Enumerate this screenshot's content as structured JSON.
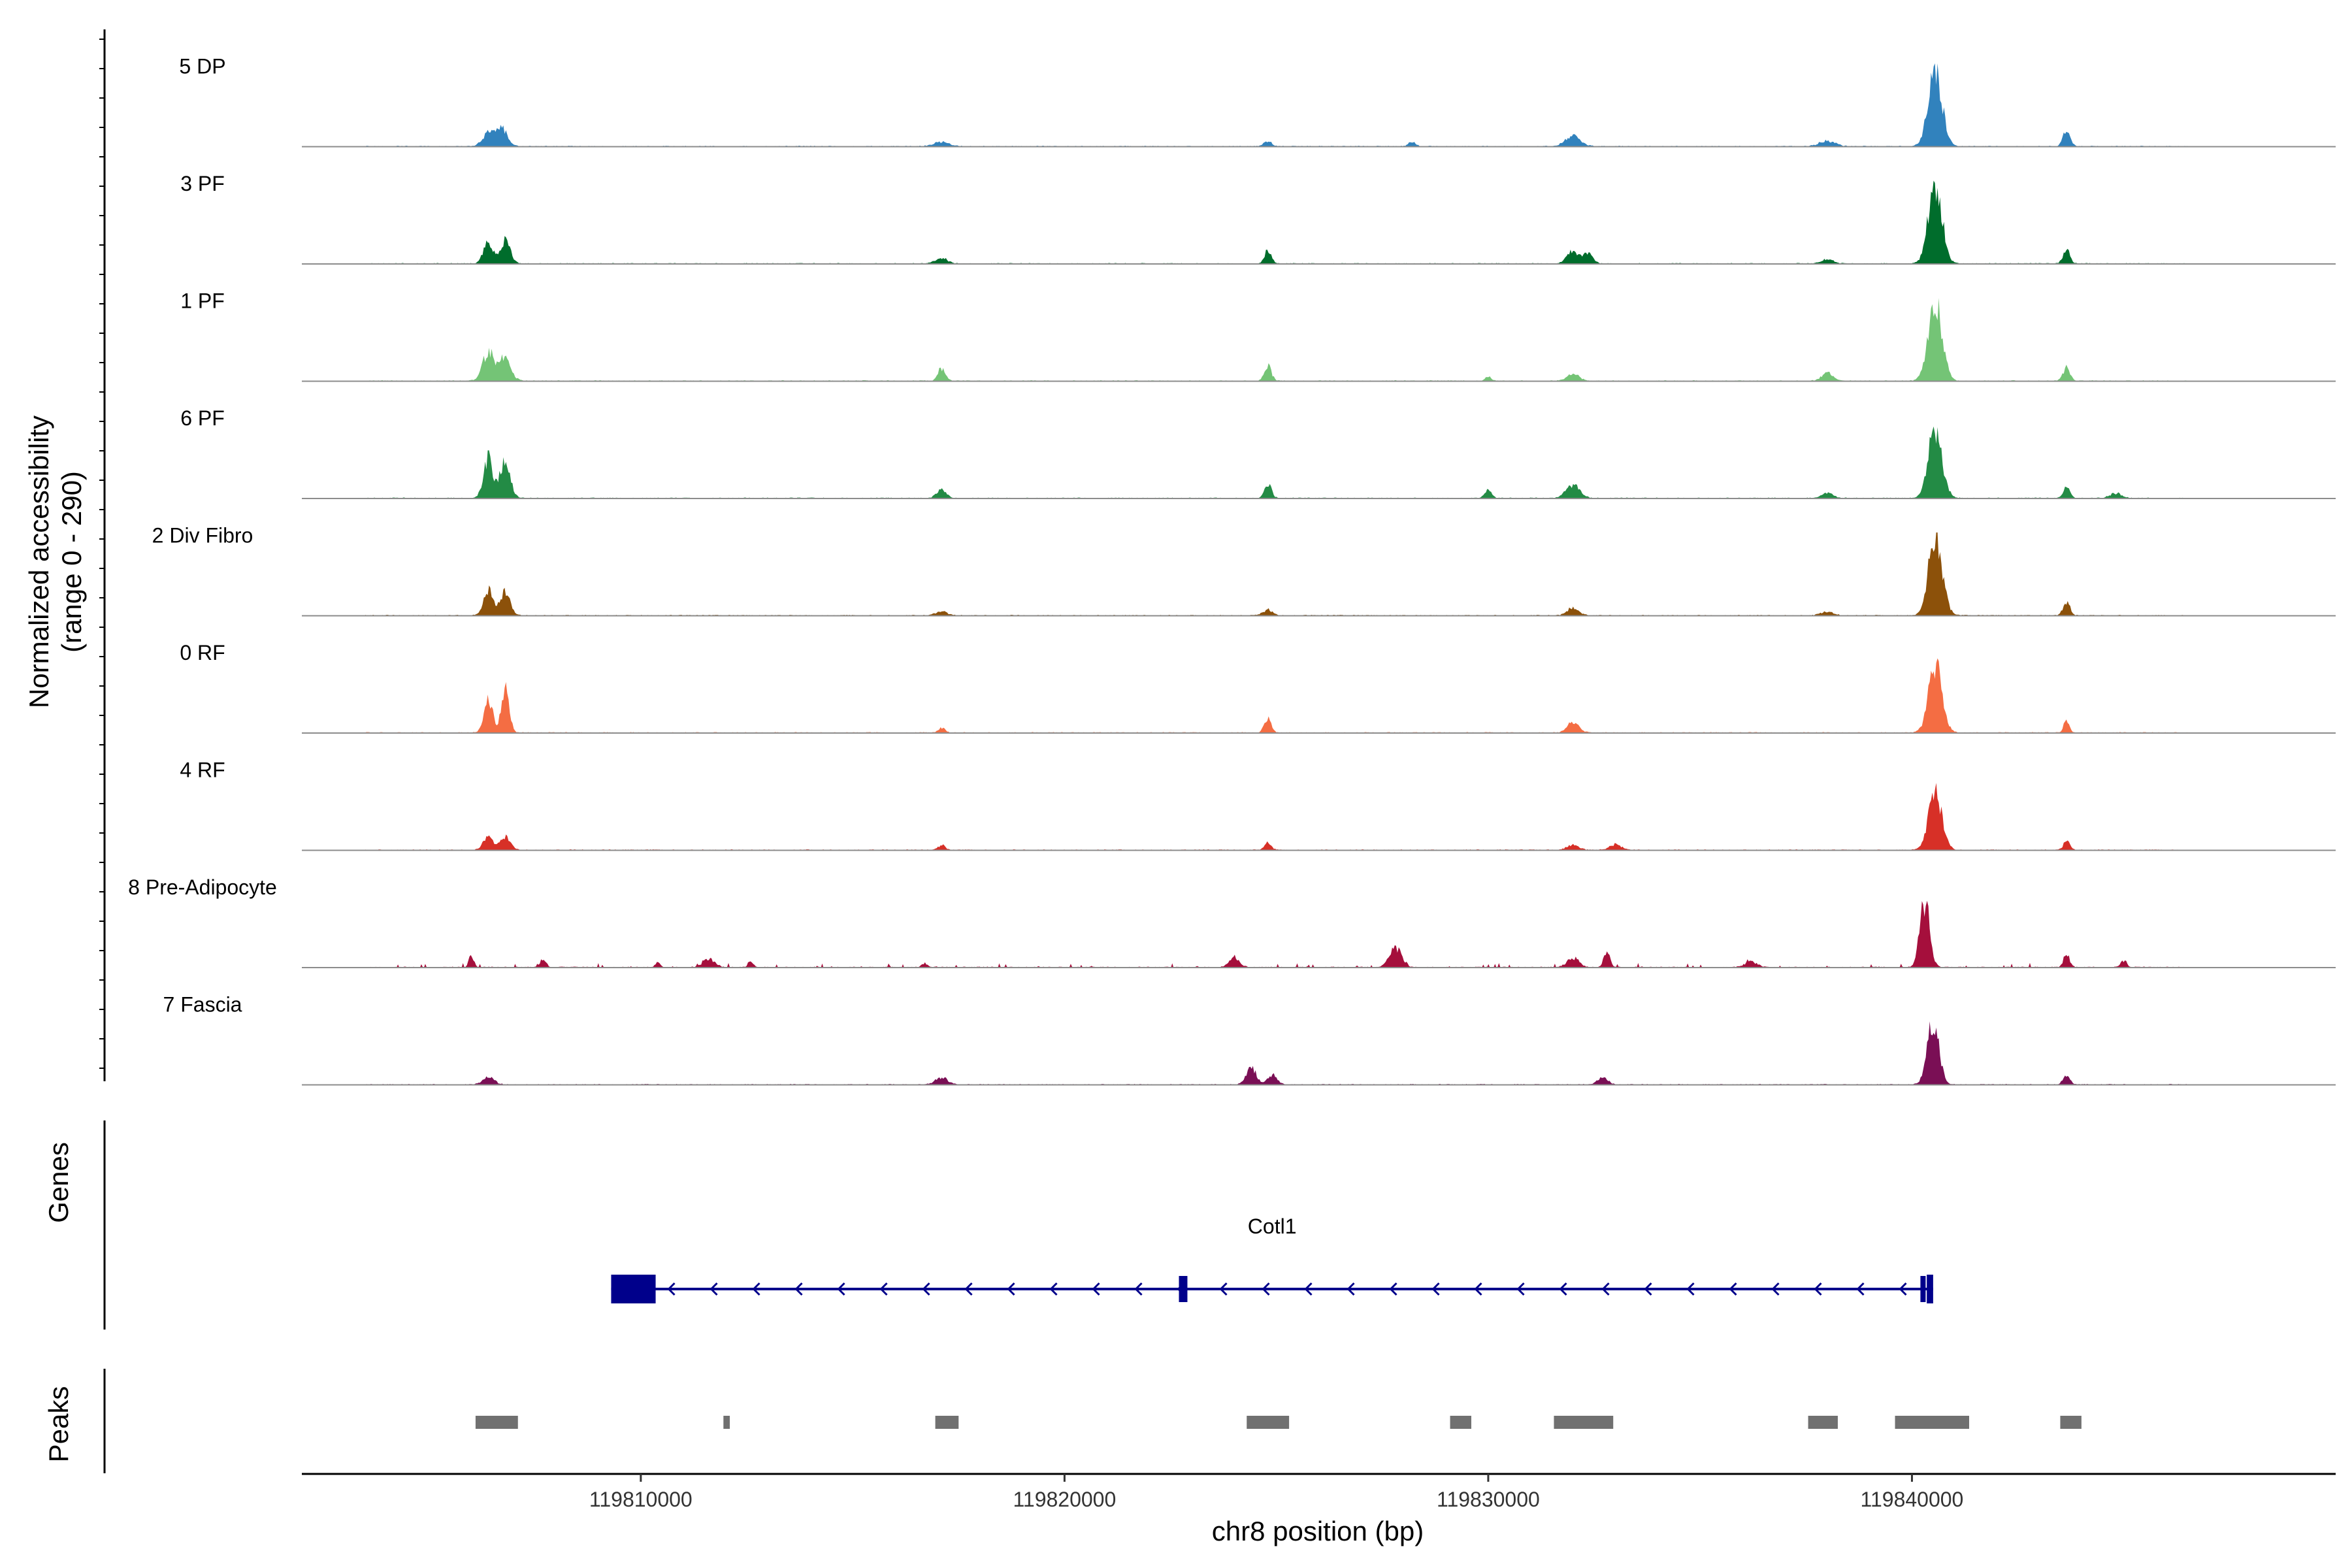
{
  "chart_data": {
    "type": "area",
    "title": "",
    "chromosome": "chr8",
    "xlabel": "chr8 position (bp)",
    "ylabel_line1": "Normalized accessibility",
    "ylabel_line2": "(range 0 - 290)",
    "xlim": [
      119802000,
      119850000
    ],
    "ylim": [
      0,
      290
    ],
    "x_ticks": [
      {
        "value": 119810000,
        "label": "119810000"
      },
      {
        "value": 119820000,
        "label": "119820000"
      },
      {
        "value": 119830000,
        "label": "119830000"
      },
      {
        "value": 119840000,
        "label": "119840000"
      }
    ],
    "peak_centers": [
      119806600,
      119812000,
      119817100,
      119824800,
      119830000,
      119832000,
      119838000,
      119840550,
      119843650
    ],
    "series": [
      {
        "name": "5 DP",
        "color": "#3182BD",
        "peaks": [
          [
            119806400,
            0.15,
            300
          ],
          [
            119806700,
            0.22,
            300
          ],
          [
            119817100,
            0.05,
            400
          ],
          [
            119824800,
            0.07,
            180
          ],
          [
            119828200,
            0.05,
            180
          ],
          [
            119832000,
            0.12,
            400
          ],
          [
            119838000,
            0.07,
            400
          ],
          [
            119840550,
            0.96,
            350
          ],
          [
            119843650,
            0.2,
            180
          ]
        ]
      },
      {
        "name": "3 PF",
        "color": "#006D2C",
        "peaks": [
          [
            119806400,
            0.25,
            250
          ],
          [
            119806800,
            0.28,
            250
          ],
          [
            119817100,
            0.07,
            300
          ],
          [
            119824800,
            0.16,
            180
          ],
          [
            119832000,
            0.15,
            300
          ],
          [
            119832350,
            0.12,
            250
          ],
          [
            119838000,
            0.05,
            300
          ],
          [
            119840550,
            0.96,
            350
          ],
          [
            119843650,
            0.16,
            180
          ]
        ]
      },
      {
        "name": "1 PF",
        "color": "#74C476",
        "peaks": [
          [
            119806400,
            0.35,
            300
          ],
          [
            119806800,
            0.28,
            300
          ],
          [
            119817100,
            0.16,
            180
          ],
          [
            119824800,
            0.18,
            180
          ],
          [
            119830000,
            0.05,
            150
          ],
          [
            119832000,
            0.09,
            300
          ],
          [
            119838000,
            0.09,
            300
          ],
          [
            119840550,
            1.0,
            350
          ],
          [
            119843650,
            0.16,
            180
          ]
        ]
      },
      {
        "name": "6 PF",
        "color": "#238B45",
        "peaks": [
          [
            119806400,
            0.48,
            250
          ],
          [
            119806800,
            0.5,
            250
          ],
          [
            119817100,
            0.1,
            250
          ],
          [
            119824800,
            0.18,
            180
          ],
          [
            119830000,
            0.09,
            180
          ],
          [
            119832000,
            0.16,
            350
          ],
          [
            119838000,
            0.06,
            300
          ],
          [
            119840550,
            0.85,
            350
          ],
          [
            119843650,
            0.13,
            180
          ],
          [
            119844800,
            0.06,
            300
          ]
        ]
      },
      {
        "name": "2 Div Fibro",
        "color": "#8C510A",
        "peaks": [
          [
            119806400,
            0.3,
            250
          ],
          [
            119806800,
            0.3,
            250
          ],
          [
            119817100,
            0.05,
            300
          ],
          [
            119824800,
            0.07,
            250
          ],
          [
            119832000,
            0.09,
            300
          ],
          [
            119838000,
            0.05,
            300
          ],
          [
            119840550,
            1.0,
            350
          ],
          [
            119843650,
            0.16,
            180
          ]
        ]
      },
      {
        "name": "0 RF",
        "color": "#F46D43",
        "peaks": [
          [
            119806400,
            0.42,
            220
          ],
          [
            119806800,
            0.58,
            200
          ],
          [
            119817100,
            0.06,
            180
          ],
          [
            119824800,
            0.17,
            180
          ],
          [
            119832000,
            0.12,
            300
          ],
          [
            119840550,
            0.8,
            350
          ],
          [
            119843650,
            0.15,
            150
          ]
        ]
      },
      {
        "name": "4 RF",
        "color": "#D73027",
        "peaks": [
          [
            119806400,
            0.17,
            250
          ],
          [
            119806800,
            0.17,
            250
          ],
          [
            119817100,
            0.06,
            180
          ],
          [
            119824800,
            0.09,
            180
          ],
          [
            119832000,
            0.06,
            300
          ],
          [
            119833000,
            0.07,
            300
          ],
          [
            119840550,
            0.7,
            350
          ],
          [
            119843650,
            0.13,
            150
          ]
        ]
      },
      {
        "name": "8 Pre-Adipocyte",
        "color": "#A50F3C",
        "peaks": [
          [
            119806000,
            0.15,
            120
          ],
          [
            119807700,
            0.1,
            150
          ],
          [
            119810400,
            0.06,
            120
          ],
          [
            119811600,
            0.1,
            300
          ],
          [
            119812600,
            0.07,
            120
          ],
          [
            119816700,
            0.05,
            150
          ],
          [
            119824000,
            0.13,
            250
          ],
          [
            119827800,
            0.25,
            300
          ],
          [
            119832000,
            0.12,
            300
          ],
          [
            119832800,
            0.2,
            150
          ],
          [
            119836200,
            0.07,
            300
          ],
          [
            119840300,
            0.8,
            250
          ],
          [
            119843650,
            0.17,
            150
          ],
          [
            119845000,
            0.08,
            150
          ],
          [
            119847400,
            0.05,
            100
          ]
        ]
      },
      {
        "name": "7 Fascia",
        "color": "#7A0F55",
        "peaks": [
          [
            119806400,
            0.09,
            300
          ],
          [
            119817100,
            0.09,
            300
          ],
          [
            119824400,
            0.22,
            250
          ],
          [
            119824900,
            0.12,
            250
          ],
          [
            119832700,
            0.1,
            250
          ],
          [
            119840500,
            0.75,
            300
          ],
          [
            119843650,
            0.12,
            180
          ]
        ]
      }
    ],
    "genes": [
      {
        "name": "Cotl1",
        "strand": "-",
        "start": 119809300,
        "end": 119840500,
        "color": "#00008B",
        "exons": [
          [
            119809300,
            119810350
          ],
          [
            119822700,
            119822900
          ],
          [
            119840200,
            119840250
          ],
          [
            119840350,
            119840500
          ]
        ]
      }
    ],
    "peaks_track": {
      "label": "Peaks",
      "color": "#707070",
      "regions": [
        [
          119806100,
          119807100
        ],
        [
          119811950,
          119812100
        ],
        [
          119816950,
          119817500
        ],
        [
          119824300,
          119825300
        ],
        [
          119829100,
          119829600
        ],
        [
          119831550,
          119832950
        ],
        [
          119837550,
          119838250
        ],
        [
          119839600,
          119841350
        ],
        [
          119843500,
          119844000
        ]
      ]
    },
    "genes_track_label": "Genes",
    "legend": "none",
    "grid": false
  }
}
